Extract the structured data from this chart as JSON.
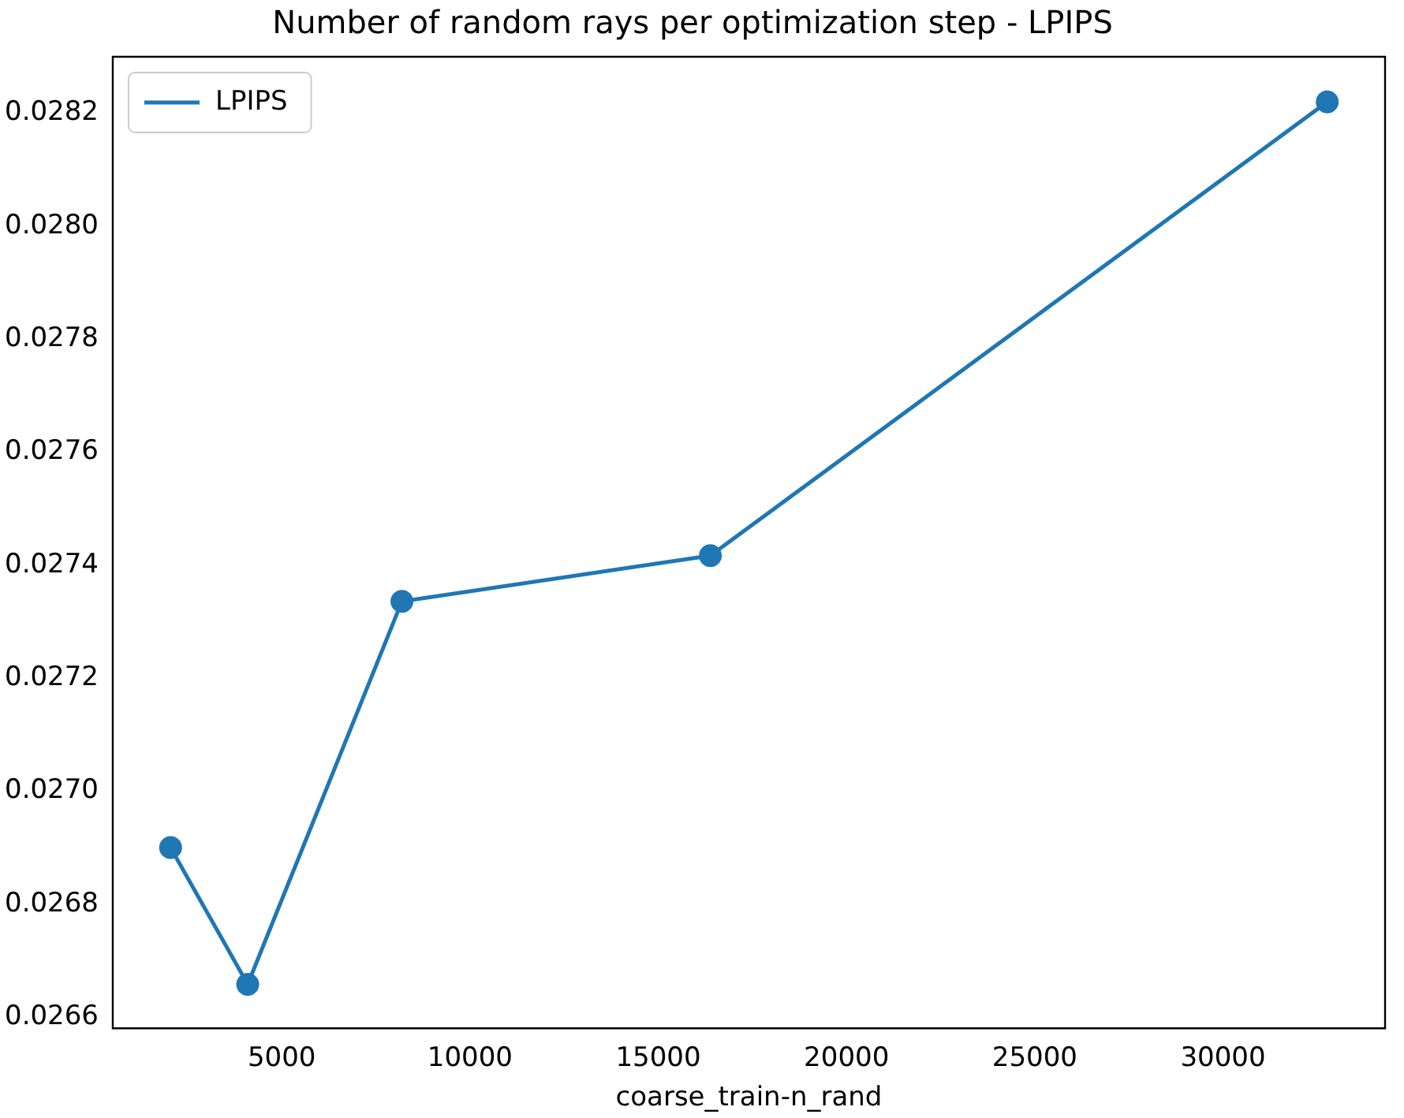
{
  "chart_data": {
    "type": "line",
    "title": "Number of random rays per optimization step - LPIPS",
    "xlabel": "coarse_train-n_rand",
    "x": [
      2048,
      4096,
      8192,
      16384,
      32768
    ],
    "series": [
      {
        "name": "LPIPS",
        "color": "#1f77b4",
        "values": [
          0.0269,
          0.026658,
          0.027336,
          0.027417,
          0.02822
        ]
      }
    ],
    "xlim": [
      512,
      34304
    ],
    "xticks": [
      5000,
      10000,
      15000,
      20000,
      25000,
      30000
    ],
    "ylim": [
      0.02658,
      0.0283
    ],
    "yticks": [
      {
        "value": 0.0266,
        "label": "0.0266"
      },
      {
        "value": 0.0268,
        "label": "0.0268"
      },
      {
        "value": 0.027,
        "label": "0.0270"
      },
      {
        "value": 0.0272,
        "label": "0.0272"
      },
      {
        "value": 0.0274,
        "label": "0.0274"
      },
      {
        "value": 0.0276,
        "label": "0.0276"
      },
      {
        "value": 0.0278,
        "label": "0.0278"
      },
      {
        "value": 0.028,
        "label": "0.0280"
      },
      {
        "value": 0.0282,
        "label": "0.0282"
      }
    ],
    "grid": false,
    "legend": "top left",
    "marker": "circle",
    "line_style": "solid"
  }
}
